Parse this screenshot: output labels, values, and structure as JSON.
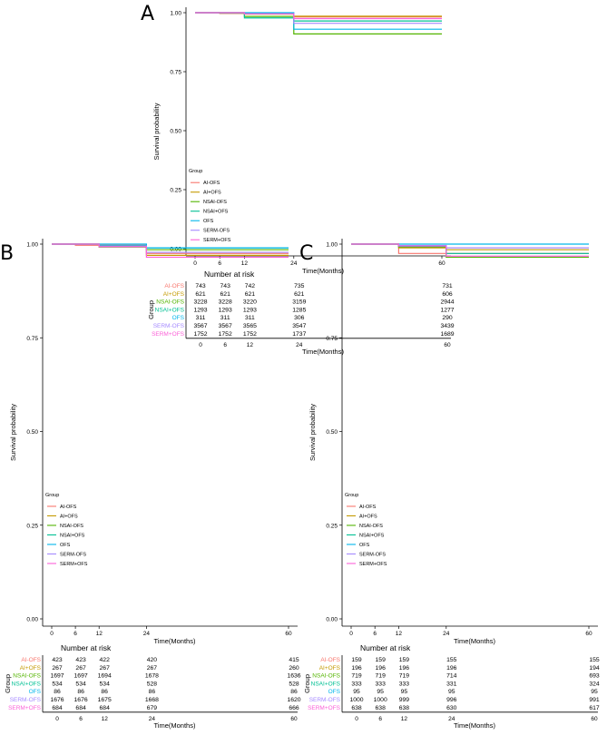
{
  "figure": {
    "palette": {
      "AI-OFS": "#F8766D",
      "AI+OFS": "#C49A00",
      "NSAI-OFS": "#53B400",
      "NSAI+OFS": "#00C094",
      "OFS": "#00B6EB",
      "SERM-OFS": "#A58AFF",
      "SERM+OFS": "#FB61D7"
    },
    "groups": [
      "AI-OFS",
      "AI+OFS",
      "NSAI-OFS",
      "NSAI+OFS",
      "OFS",
      "SERM-OFS",
      "SERM+OFS"
    ],
    "legend_title": "Group",
    "risk_table_title": "Number at risk",
    "risk_table_ylabel": "Group"
  },
  "chart_data": [
    {
      "panel_label": "A",
      "type": "line",
      "ylabel": "Survival probability",
      "xlabel": "Time(Months)",
      "xlim": [
        0,
        60
      ],
      "ylim": [
        0,
        1
      ],
      "x_ticks": [
        0,
        6,
        12,
        24,
        60
      ],
      "y_ticks": [
        "0.00",
        "0.25",
        "0.50",
        "0.75",
        "1.00"
      ],
      "series": [
        {
          "name": "AI-OFS",
          "steps": [
            [
              0,
              1.0
            ],
            [
              6,
              0.997
            ],
            [
              24,
              0.982
            ]
          ],
          "end": 60
        },
        {
          "name": "AI+OFS",
          "steps": [
            [
              0,
              1.0
            ],
            [
              12,
              0.994
            ],
            [
              24,
              0.985
            ]
          ],
          "end": 60
        },
        {
          "name": "NSAI-OFS",
          "steps": [
            [
              0,
              1.0
            ],
            [
              6,
              0.998
            ],
            [
              12,
              0.984
            ],
            [
              24,
              0.91
            ]
          ],
          "end": 60
        },
        {
          "name": "NSAI+OFS",
          "steps": [
            [
              0,
              1.0
            ],
            [
              12,
              0.978
            ],
            [
              24,
              0.965
            ]
          ],
          "end": 60
        },
        {
          "name": "OFS",
          "steps": [
            [
              0,
              1.0
            ],
            [
              24,
              0.93
            ]
          ],
          "end": 60
        },
        {
          "name": "SERM-OFS",
          "steps": [
            [
              0,
              1.0
            ],
            [
              12,
              0.996
            ],
            [
              24,
              0.955
            ]
          ],
          "end": 60
        },
        {
          "name": "SERM+OFS",
          "steps": [
            [
              0,
              1.0
            ],
            [
              12,
              0.995
            ],
            [
              24,
              0.975
            ]
          ],
          "end": 60
        }
      ],
      "risk_table": {
        "times": [
          0,
          6,
          12,
          24,
          60
        ],
        "rows": [
          [
            "743",
            "743",
            "742",
            "735",
            "731"
          ],
          [
            "621",
            "621",
            "621",
            "621",
            "606"
          ],
          [
            "3228",
            "3228",
            "3220",
            "3159",
            "2944"
          ],
          [
            "1293",
            "1293",
            "1293",
            "1285",
            "1277"
          ],
          [
            "311",
            "311",
            "311",
            "306",
            "290"
          ],
          [
            "3567",
            "3567",
            "3565",
            "3547",
            "3439"
          ],
          [
            "1752",
            "1752",
            "1752",
            "1737",
            "1689"
          ]
        ]
      }
    },
    {
      "panel_label": "B",
      "type": "line",
      "ylabel": "Survival probability",
      "xlabel": "Time(Months)",
      "xlim": [
        0,
        60
      ],
      "ylim": [
        0,
        1
      ],
      "x_ticks": [
        0,
        6,
        12,
        24,
        60
      ],
      "y_ticks": [
        "0.00",
        "0.25",
        "0.50",
        "0.75",
        "1.00"
      ],
      "series": [
        {
          "name": "AI-OFS",
          "steps": [
            [
              0,
              1.0
            ],
            [
              6,
              0.997
            ],
            [
              24,
              0.975
            ]
          ],
          "end": 60
        },
        {
          "name": "AI+OFS",
          "steps": [
            [
              0,
              1.0
            ],
            [
              12,
              0.993
            ],
            [
              24,
              0.97
            ]
          ],
          "end": 60
        },
        {
          "name": "NSAI-OFS",
          "steps": [
            [
              0,
              1.0
            ],
            [
              12,
              0.992
            ],
            [
              24,
              0.985
            ]
          ],
          "end": 60
        },
        {
          "name": "NSAI+OFS",
          "steps": [
            [
              0,
              1.0
            ],
            [
              12,
              0.996
            ],
            [
              24,
              0.99
            ]
          ],
          "end": 60
        },
        {
          "name": "OFS",
          "steps": [
            [
              0,
              1.0
            ],
            [
              24,
              0.99
            ]
          ],
          "end": 60
        },
        {
          "name": "SERM-OFS",
          "steps": [
            [
              0,
              1.0
            ],
            [
              12,
              0.995
            ],
            [
              24,
              0.978
            ]
          ],
          "end": 60
        },
        {
          "name": "SERM+OFS",
          "steps": [
            [
              0,
              1.0
            ],
            [
              12,
              0.993
            ],
            [
              24,
              0.965
            ]
          ],
          "end": 60
        }
      ],
      "risk_table": {
        "times": [
          0,
          6,
          12,
          24,
          60
        ],
        "rows": [
          [
            "423",
            "423",
            "422",
            "420",
            "415"
          ],
          [
            "267",
            "267",
            "267",
            "267",
            "260"
          ],
          [
            "1697",
            "1697",
            "1694",
            "1678",
            "1636"
          ],
          [
            "534",
            "534",
            "534",
            "528",
            "528"
          ],
          [
            "86",
            "86",
            "86",
            "86",
            "86"
          ],
          [
            "1676",
            "1676",
            "1675",
            "1668",
            "1620"
          ],
          [
            "684",
            "684",
            "684",
            "679",
            "666"
          ]
        ]
      }
    },
    {
      "panel_label": "C",
      "type": "line",
      "ylabel": "Survival probability",
      "xlabel": "Time(Months)",
      "xlim": [
        0,
        60
      ],
      "ylim": [
        0,
        1
      ],
      "x_ticks": [
        0,
        6,
        12,
        24,
        60
      ],
      "y_ticks": [
        "0.00",
        "0.25",
        "0.50",
        "0.75",
        "1.00"
      ],
      "series": [
        {
          "name": "AI-OFS",
          "steps": [
            [
              0,
              1.0
            ],
            [
              12,
              0.975
            ]
          ],
          "end": 60
        },
        {
          "name": "AI+OFS",
          "steps": [
            [
              0,
              1.0
            ],
            [
              12,
              0.99
            ],
            [
              24,
              0.985
            ]
          ],
          "end": 60
        },
        {
          "name": "NSAI-OFS",
          "steps": [
            [
              0,
              1.0
            ],
            [
              12,
              0.993
            ],
            [
              24,
              0.965
            ]
          ],
          "end": 60
        },
        {
          "name": "NSAI+OFS",
          "steps": [
            [
              0,
              1.0
            ],
            [
              12,
              0.994
            ],
            [
              24,
              0.975
            ]
          ],
          "end": 60
        },
        {
          "name": "OFS",
          "steps": [
            [
              0,
              1.0
            ],
            [
              24,
              1.0
            ]
          ],
          "end": 60
        },
        {
          "name": "SERM-OFS",
          "steps": [
            [
              0,
              1.0
            ],
            [
              12,
              0.996
            ],
            [
              24,
              0.99
            ]
          ],
          "end": 60
        },
        {
          "name": "SERM+OFS",
          "steps": [
            [
              0,
              1.0
            ],
            [
              12,
              0.995
            ],
            [
              24,
              0.968
            ]
          ],
          "end": 60
        }
      ],
      "risk_table": {
        "times": [
          0,
          6,
          12,
          24,
          60
        ],
        "rows": [
          [
            "159",
            "159",
            "159",
            "155",
            "155"
          ],
          [
            "196",
            "196",
            "196",
            "196",
            "194"
          ],
          [
            "719",
            "719",
            "719",
            "714",
            "693"
          ],
          [
            "333",
            "333",
            "333",
            "331",
            "324"
          ],
          [
            "95",
            "95",
            "95",
            "95",
            "95"
          ],
          [
            "1000",
            "1000",
            "999",
            "996",
            "991"
          ],
          [
            "638",
            "638",
            "638",
            "630",
            "617"
          ]
        ]
      }
    }
  ]
}
